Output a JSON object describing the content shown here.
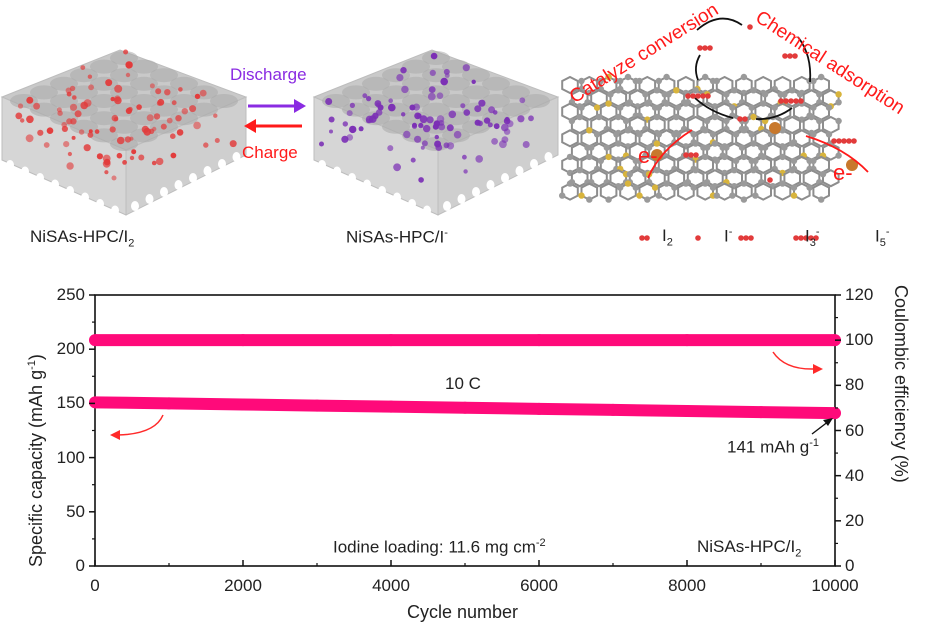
{
  "schematic": {
    "left_label": "NiSAs-HPC/I",
    "left_label_sub": "2",
    "middle_label": "NiSAs-HPC/I",
    "middle_label_sup": "-",
    "discharge_label": "Discharge",
    "charge_label": "Charge",
    "catalyze_label": "Catalyze conversion",
    "adsorption_label": "Chemical adsorption",
    "electron_label_1": "e-",
    "electron_label_2": "e-",
    "legend": [
      {
        "name": "I",
        "sub": "2",
        "sup": ""
      },
      {
        "name": "I",
        "sub": "",
        "sup": "-"
      },
      {
        "name": "I",
        "sub": "3",
        "sup": "-"
      },
      {
        "name": "I",
        "sub": "5",
        "sup": "-"
      }
    ],
    "colors": {
      "iodine": "#e23b3b",
      "iodide": "#7b2fb5",
      "discharge": "#8a2be2",
      "charge": "#ff1a1a",
      "carbon": "#9a9a9a",
      "sulfur": "#d8b43c",
      "nickel": "#c8782c"
    }
  },
  "chart_data": {
    "type": "scatter",
    "xlabel": "Cycle number",
    "ylabel_left": "Specific capacity (mAh g",
    "ylabel_left_sup": "-1",
    "ylabel_left_end": ")",
    "ylabel_right": "Coulombic efficiency (%)",
    "xlim": [
      0,
      10000
    ],
    "ylim_left": [
      0,
      250
    ],
    "ylim_right": [
      0,
      120
    ],
    "xticks": [
      "0",
      "2000",
      "4000",
      "6000",
      "8000",
      "10000"
    ],
    "yticks_left": [
      "0",
      "50",
      "100",
      "150",
      "200",
      "250"
    ],
    "yticks_right": [
      "0",
      "20",
      "40",
      "60",
      "80",
      "100",
      "120"
    ],
    "series": [
      {
        "name": "Specific capacity",
        "axis": "left",
        "color": "#ff0a7a",
        "x": [
          0,
          1000,
          2000,
          3000,
          4000,
          5000,
          6000,
          7000,
          8000,
          9000,
          10000
        ],
        "values": [
          151,
          150,
          149,
          148,
          147,
          146,
          145,
          144,
          143,
          142,
          141
        ]
      },
      {
        "name": "Coulombic efficiency",
        "axis": "right",
        "color": "#ff0a7a",
        "x": [
          0,
          2000,
          4000,
          6000,
          8000,
          10000
        ],
        "values": [
          100,
          100,
          100,
          100,
          100,
          100
        ]
      }
    ],
    "annotations": {
      "rate": "10 C",
      "final_capacity": "141 mAh g",
      "final_capacity_sup": "-1",
      "loading": "Iodine loading: 11.6 mg cm",
      "loading_sup": "-2",
      "sample": "NiSAs-HPC/I",
      "sample_sub": "2"
    },
    "grid": false
  }
}
